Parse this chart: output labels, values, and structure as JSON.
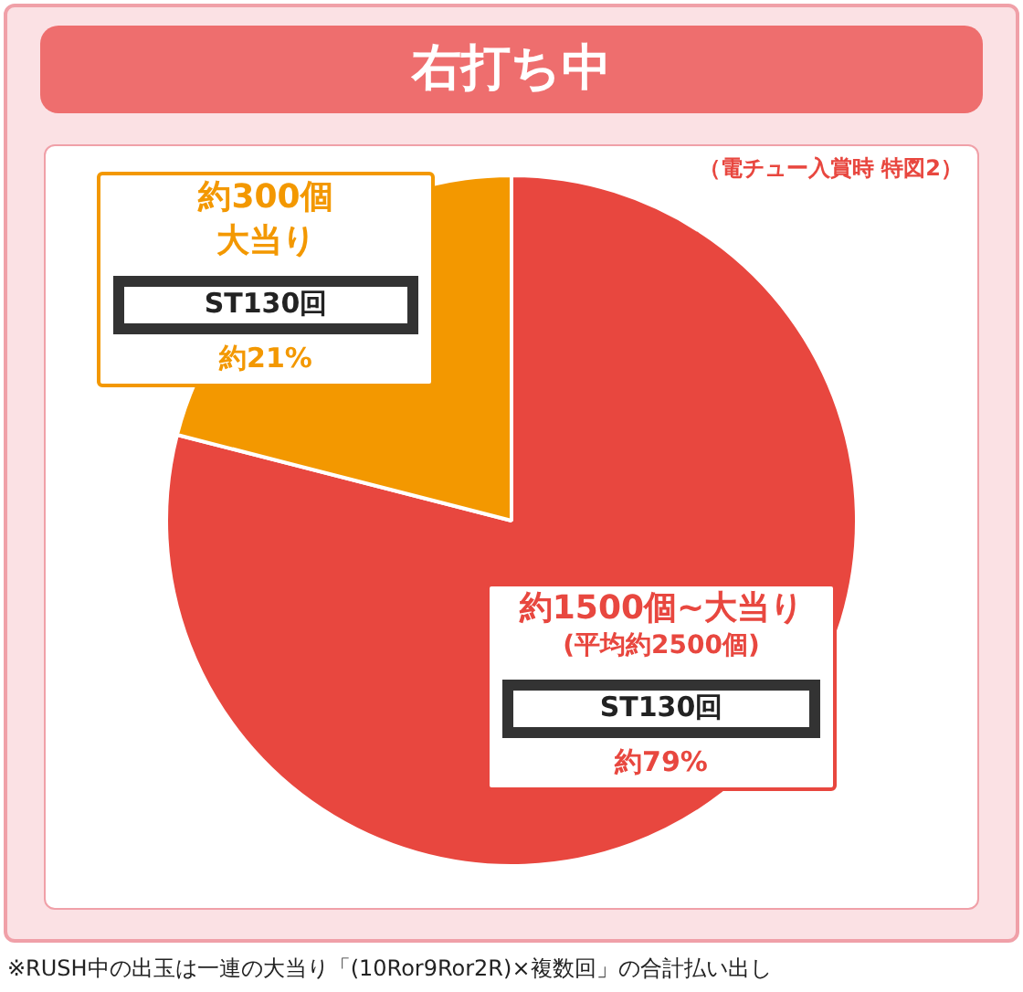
{
  "chart_data": {
    "type": "pie",
    "title": "右打ち中",
    "categories": [
      "約1500個~大当り",
      "約300個大当り"
    ],
    "values": [
      79,
      21
    ],
    "colors": [
      "#e8473f",
      "#f39800"
    ],
    "value_labels": [
      "約79%",
      "約21%"
    ],
    "legend": false,
    "annotations": [
      "(平均約2500個)",
      "ST130回",
      "ST130回",
      "（電チュー入賞時 特図2）",
      "※RUSH中の出玉は一連の大当り「(10Ror9Ror2R)×複数回」の合計払い出し"
    ]
  }
}
